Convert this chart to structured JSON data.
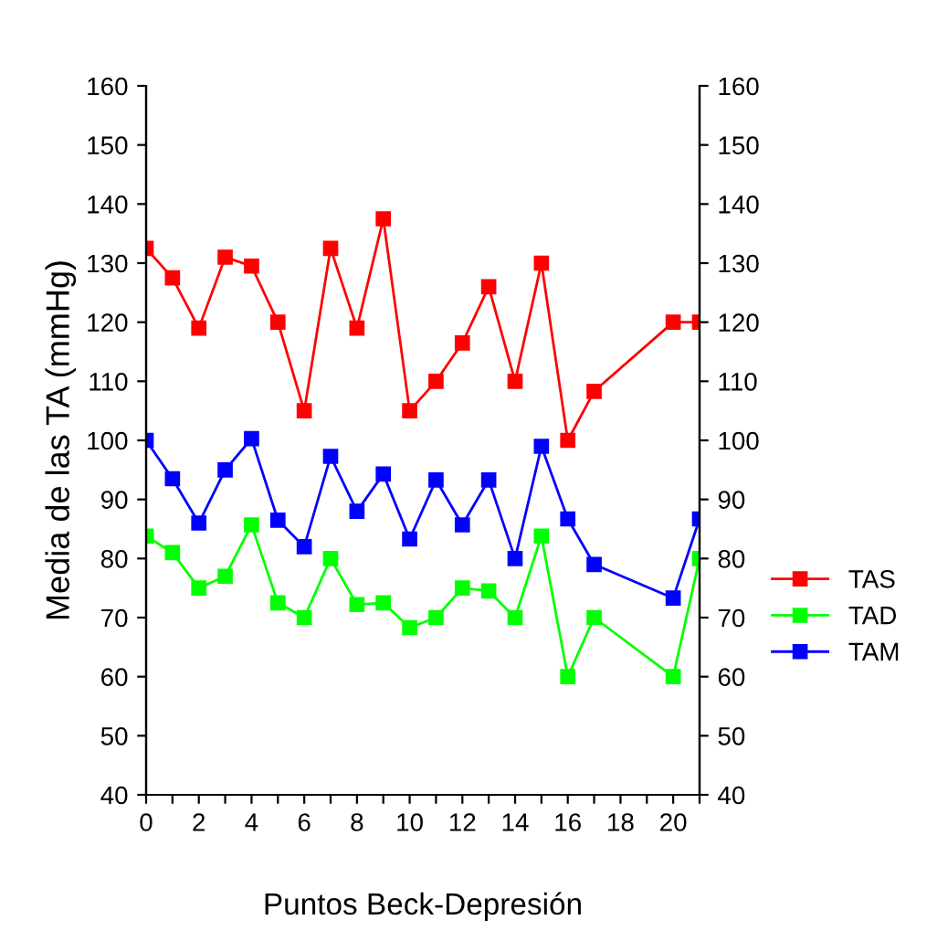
{
  "chart_data": {
    "type": "line",
    "xlabel": "Puntos Beck-Depresión",
    "ylabel": "Media de las TA (mmHg)",
    "x": [
      0,
      1,
      2,
      3,
      4,
      5,
      6,
      7,
      8,
      9,
      10,
      11,
      12,
      13,
      14,
      15,
      16,
      17,
      20,
      21
    ],
    "series": [
      {
        "name": "TAS",
        "color": "#ff0000",
        "values": [
          132.5,
          127.5,
          119,
          131,
          129.5,
          120,
          105,
          132.5,
          119,
          137.5,
          105,
          110,
          116.5,
          126,
          110,
          130,
          100,
          108.3,
          120,
          120
        ]
      },
      {
        "name": "TAD",
        "color": "#00ff00",
        "values": [
          83.8,
          81,
          75,
          77,
          85.7,
          72.5,
          70,
          80,
          72.2,
          72.5,
          68.3,
          70,
          75,
          74.5,
          70,
          83.8,
          60,
          70,
          60,
          80
        ]
      },
      {
        "name": "TAM",
        "color": "#0000ff",
        "values": [
          100,
          93.5,
          86,
          95,
          100.3,
          86.5,
          82,
          97.3,
          88,
          94.3,
          83.3,
          93.3,
          85.7,
          93.3,
          80,
          99,
          86.7,
          79,
          73.3,
          86.7
        ]
      }
    ],
    "xlim": [
      0,
      21
    ],
    "xticks": [
      0,
      {
        "value": 1,
        "label": null
      },
      2,
      {
        "value": 3,
        "label": null
      },
      4,
      {
        "value": 5,
        "label": null
      },
      6,
      {
        "value": 7,
        "label": null
      },
      8,
      {
        "value": 9,
        "label": null
      },
      10,
      {
        "value": 11,
        "label": null
      },
      12,
      {
        "value": 13,
        "label": null
      },
      14,
      {
        "value": 15,
        "label": null
      },
      16,
      {
        "value": 17,
        "label": null
      },
      18,
      {
        "value": 19,
        "label": null
      },
      20,
      {
        "value": 21,
        "label": null
      }
    ],
    "ylim": [
      40,
      160
    ],
    "yticks": [
      40,
      50,
      60,
      70,
      80,
      90,
      100,
      110,
      120,
      130,
      140,
      150,
      160
    ],
    "y2lim": [
      40,
      160
    ],
    "y2ticks": [
      40,
      50,
      60,
      70,
      80,
      90,
      100,
      110,
      120,
      130,
      140,
      150,
      160
    ],
    "marker": "square",
    "line_style": "solid",
    "grid": false,
    "legend": "right"
  }
}
